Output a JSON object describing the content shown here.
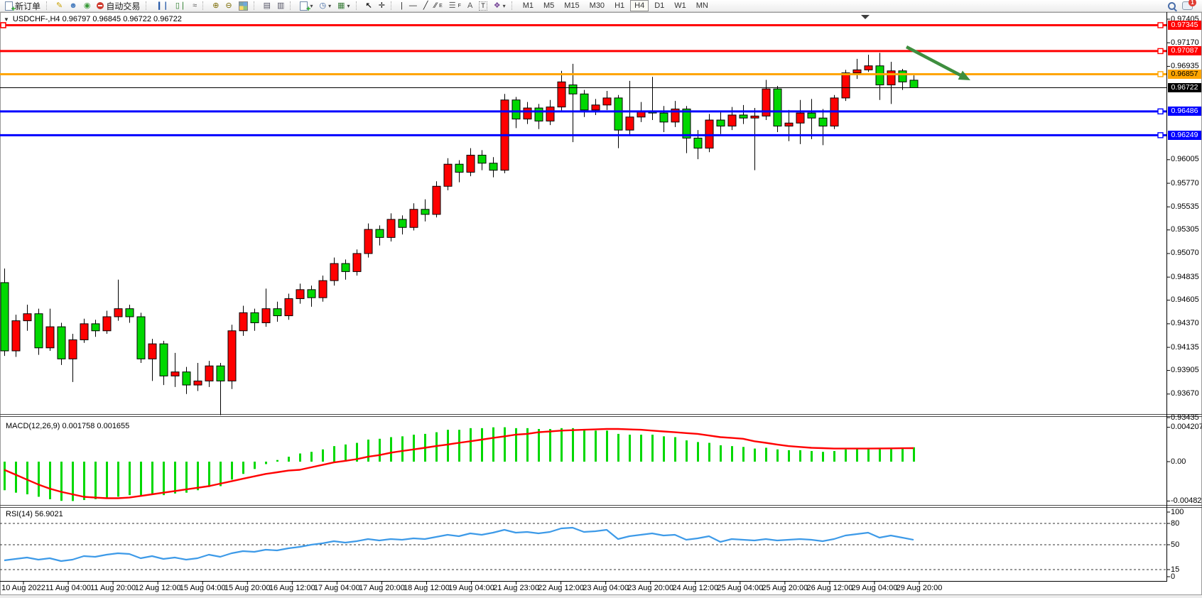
{
  "toolbar": {
    "new_order_label": "新订单",
    "auto_trading_label": "自动交易",
    "chart_tools": {
      "text_tool": "A",
      "label_tool": "T",
      "channel_letter": "E",
      "fibo_letter": "F"
    },
    "timeframes": [
      "M1",
      "M5",
      "M15",
      "M30",
      "H1",
      "H4",
      "D1",
      "W1",
      "MN"
    ],
    "active_timeframe": "H4",
    "notification_badge": "1"
  },
  "chart": {
    "title": "USDCHF-,H4 0.96797 0.96845 0.96722 0.96722",
    "symbol": "USDCHF-",
    "timeframe": "H4",
    "open": "0.96797",
    "high": "0.96845",
    "low": "0.96722",
    "close": "0.96722"
  },
  "panels": {
    "macd": {
      "label": "MACD(12,26,9) 0.001758 0.001655",
      "axis_labels": [
        {
          "value": 0.004207,
          "text": "0.004207"
        },
        {
          "value": 0,
          "text": "0.00"
        },
        {
          "value": -0.004823,
          "text": "-0.004823"
        }
      ]
    },
    "rsi": {
      "label": "RSI(14) 56.9021",
      "axis_labels": [
        {
          "value": 100,
          "text": "100"
        },
        {
          "value": 80,
          "text": "80"
        },
        {
          "value": 50,
          "text": "50"
        },
        {
          "value": 15,
          "text": "15"
        },
        {
          "value": 0,
          "text": "0"
        }
      ],
      "level_lines": [
        80,
        50,
        15
      ]
    }
  },
  "price_axis_ticks": [
    "0.97405",
    "0.97170",
    "0.96935",
    "0.96005",
    "0.95770",
    "0.95535",
    "0.95305",
    "0.95070",
    "0.94835",
    "0.94605",
    "0.94370",
    "0.94135",
    "0.93905",
    "0.93670",
    "0.93435"
  ],
  "time_axis_labels": [
    "10 Aug 2022",
    "11 Aug 04:00",
    "11 Aug 20:00",
    "12 Aug 12:00",
    "15 Aug 04:00",
    "15 Aug 20:00",
    "16 Aug 12:00",
    "17 Aug 04:00",
    "17 Aug 20:00",
    "18 Aug 12:00",
    "19 Aug 04:00",
    "21 Aug 23:00",
    "22 Aug 12:00",
    "23 Aug 04:00",
    "23 Aug 20:00",
    "24 Aug 12:00",
    "25 Aug 04:00",
    "25 Aug 20:00",
    "26 Aug 12:00",
    "29 Aug 04:00",
    "29 Aug 20:00"
  ],
  "hlines": [
    {
      "price": 0.97345,
      "label": "0.97345",
      "color_key": "red"
    },
    {
      "price": 0.97087,
      "label": "0.97087",
      "color_key": "red"
    },
    {
      "price": 0.96857,
      "label": "0.96857",
      "color_key": "orange"
    },
    {
      "price": 0.96722,
      "label": "0.96722",
      "color_key": "black"
    },
    {
      "price": 0.96486,
      "label": "0.96486",
      "color_key": "blue"
    },
    {
      "price": 0.96249,
      "label": "0.96249",
      "color_key": "blue"
    }
  ],
  "annotations": {
    "trend_arrow": {
      "from": [
        1276,
        66
      ],
      "to": [
        1366,
        113
      ]
    }
  },
  "colors": {
    "bull": "#ff0000",
    "bear": "#00d800",
    "wick": "#000000",
    "macd_hist": "#00d800",
    "macd_signal": "#ff0000",
    "rsi_line": "#3d9ae8",
    "red": "#ff0000",
    "orange": "#ffa500",
    "blue": "#0000ff",
    "black": "#000000",
    "arrow": "#3e8e3e"
  },
  "chart_data": {
    "type": "candlestick",
    "symbol": "USDCHF",
    "period": "H4",
    "price_range_visible": [
      0.93435,
      0.97405
    ],
    "up_color_convention": "red = bullish, green = bearish",
    "ohlc_order": [
      "open",
      "high",
      "low",
      "close"
    ],
    "candles": [
      [
        0.9478,
        0.9492,
        0.9405,
        0.941
      ],
      [
        0.941,
        0.9446,
        0.9404,
        0.944
      ],
      [
        0.944,
        0.9456,
        0.943,
        0.9447
      ],
      [
        0.9447,
        0.9452,
        0.9406,
        0.9413
      ],
      [
        0.9413,
        0.9452,
        0.941,
        0.9434
      ],
      [
        0.9434,
        0.9438,
        0.9396,
        0.9402
      ],
      [
        0.9402,
        0.9427,
        0.9379,
        0.9421
      ],
      [
        0.9421,
        0.9442,
        0.9418,
        0.9437
      ],
      [
        0.9437,
        0.9441,
        0.9424,
        0.943
      ],
      [
        0.943,
        0.945,
        0.9427,
        0.9444
      ],
      [
        0.9444,
        0.9481,
        0.944,
        0.9452
      ],
      [
        0.9452,
        0.9456,
        0.9438,
        0.9444
      ],
      [
        0.9444,
        0.9448,
        0.9398,
        0.9402
      ],
      [
        0.9402,
        0.9422,
        0.938,
        0.9417
      ],
      [
        0.9417,
        0.942,
        0.9376,
        0.9385
      ],
      [
        0.9385,
        0.9408,
        0.9374,
        0.9389
      ],
      [
        0.9389,
        0.9394,
        0.9367,
        0.9376
      ],
      [
        0.9376,
        0.9398,
        0.937,
        0.938
      ],
      [
        0.938,
        0.94,
        0.9374,
        0.9395
      ],
      [
        0.9395,
        0.9398,
        0.9346,
        0.938
      ],
      [
        0.938,
        0.9436,
        0.9372,
        0.943
      ],
      [
        0.943,
        0.9455,
        0.9425,
        0.9448
      ],
      [
        0.9448,
        0.9452,
        0.943,
        0.9438
      ],
      [
        0.9438,
        0.9472,
        0.9434,
        0.9452
      ],
      [
        0.9452,
        0.9459,
        0.9439,
        0.9445
      ],
      [
        0.9445,
        0.9467,
        0.9441,
        0.9462
      ],
      [
        0.9462,
        0.9477,
        0.9457,
        0.9471
      ],
      [
        0.9471,
        0.9475,
        0.9454,
        0.9463
      ],
      [
        0.9463,
        0.9485,
        0.9459,
        0.948
      ],
      [
        0.948,
        0.9503,
        0.9475,
        0.9497
      ],
      [
        0.9497,
        0.9501,
        0.9481,
        0.9489
      ],
      [
        0.9489,
        0.9511,
        0.9485,
        0.9507
      ],
      [
        0.9507,
        0.9537,
        0.9503,
        0.9531
      ],
      [
        0.9531,
        0.9535,
        0.9515,
        0.9523
      ],
      [
        0.9523,
        0.9547,
        0.9519,
        0.9541
      ],
      [
        0.9541,
        0.9545,
        0.9526,
        0.9533
      ],
      [
        0.9533,
        0.9557,
        0.953,
        0.9551
      ],
      [
        0.9551,
        0.9561,
        0.9539,
        0.9546
      ],
      [
        0.9546,
        0.9579,
        0.9543,
        0.9574
      ],
      [
        0.9574,
        0.9602,
        0.957,
        0.9596
      ],
      [
        0.9596,
        0.96,
        0.9578,
        0.9588
      ],
      [
        0.9588,
        0.9612,
        0.9584,
        0.9605
      ],
      [
        0.9605,
        0.961,
        0.959,
        0.9597
      ],
      [
        0.9597,
        0.9603,
        0.9583,
        0.959
      ],
      [
        0.959,
        0.9666,
        0.9587,
        0.966
      ],
      [
        0.966,
        0.9663,
        0.9632,
        0.9641
      ],
      [
        0.9641,
        0.9658,
        0.9636,
        0.9652
      ],
      [
        0.9652,
        0.9656,
        0.9631,
        0.9639
      ],
      [
        0.9639,
        0.966,
        0.9635,
        0.9653
      ],
      [
        0.9653,
        0.9689,
        0.9649,
        0.9678
      ],
      [
        0.9675,
        0.9696,
        0.9618,
        0.9666
      ],
      [
        0.9666,
        0.967,
        0.9643,
        0.965
      ],
      [
        0.965,
        0.9661,
        0.9645,
        0.9655
      ],
      [
        0.9655,
        0.9669,
        0.965,
        0.9662
      ],
      [
        0.9662,
        0.9665,
        0.9612,
        0.963
      ],
      [
        0.963,
        0.9679,
        0.9625,
        0.9643
      ],
      [
        0.9643,
        0.9658,
        0.9638,
        0.9649
      ],
      [
        0.9649,
        0.9683,
        0.964,
        0.9647
      ],
      [
        0.9647,
        0.9654,
        0.9628,
        0.9638
      ],
      [
        0.9638,
        0.9659,
        0.9633,
        0.9651
      ],
      [
        0.9651,
        0.9654,
        0.9607,
        0.9622
      ],
      [
        0.9622,
        0.963,
        0.9601,
        0.9612
      ],
      [
        0.9612,
        0.9646,
        0.9608,
        0.964
      ],
      [
        0.964,
        0.9648,
        0.9626,
        0.9634
      ],
      [
        0.9634,
        0.9653,
        0.963,
        0.9645
      ],
      [
        0.9645,
        0.9655,
        0.9636,
        0.9642
      ],
      [
        0.9642,
        0.9652,
        0.959,
        0.9644
      ],
      [
        0.9644,
        0.968,
        0.964,
        0.9671
      ],
      [
        0.9671,
        0.9674,
        0.9628,
        0.9634
      ],
      [
        0.9634,
        0.965,
        0.9619,
        0.9637
      ],
      [
        0.9637,
        0.966,
        0.9616,
        0.9647
      ],
      [
        0.9647,
        0.9661,
        0.9621,
        0.9642
      ],
      [
        0.9642,
        0.9651,
        0.9615,
        0.9634
      ],
      [
        0.9634,
        0.9665,
        0.9631,
        0.9662
      ],
      [
        0.9662,
        0.969,
        0.9659,
        0.9687
      ],
      [
        0.9687,
        0.9701,
        0.9681,
        0.969
      ],
      [
        0.969,
        0.9705,
        0.9688,
        0.9694
      ],
      [
        0.9694,
        0.9707,
        0.966,
        0.9675
      ],
      [
        0.9675,
        0.9698,
        0.9656,
        0.9689
      ],
      [
        0.9689,
        0.9691,
        0.967,
        0.9678
      ],
      [
        0.96797,
        0.96845,
        0.96722,
        0.96722
      ]
    ],
    "macd": {
      "params": "12,26,9",
      "current_macd": 0.001758,
      "current_signal": 0.001655,
      "range": [
        -0.004823,
        0.004207
      ],
      "histogram": [
        -0.0035,
        -0.0038,
        -0.004,
        -0.0043,
        -0.0046,
        -0.0048,
        -0.00482,
        -0.0047,
        -0.0046,
        -0.0044,
        -0.0043,
        -0.0041,
        -0.0042,
        -0.004,
        -0.0041,
        -0.0039,
        -0.0038,
        -0.0035,
        -0.0031,
        -0.003,
        -0.0022,
        -0.0015,
        -0.0009,
        -0.0003,
        0.0002,
        0.0006,
        0.001,
        0.0012,
        0.0015,
        0.0019,
        0.0021,
        0.0023,
        0.0027,
        0.0028,
        0.003,
        0.0031,
        0.0033,
        0.0034,
        0.0036,
        0.0039,
        0.0039,
        0.0041,
        0.0041,
        0.0042,
        0.00421,
        0.0041,
        0.0041,
        0.004,
        0.004,
        0.0041,
        0.0041,
        0.0039,
        0.0038,
        0.0038,
        0.0034,
        0.0033,
        0.0033,
        0.0033,
        0.0031,
        0.003,
        0.0026,
        0.0024,
        0.0023,
        0.002,
        0.0019,
        0.0018,
        0.0016,
        0.0017,
        0.0015,
        0.0014,
        0.0014,
        0.0013,
        0.0012,
        0.0013,
        0.0015,
        0.0016,
        0.0017,
        0.0016,
        0.0017,
        0.0017,
        0.001758
      ],
      "signal": [
        -0.001,
        -0.0016,
        -0.0022,
        -0.0028,
        -0.0033,
        -0.0037,
        -0.004,
        -0.0043,
        -0.0044,
        -0.00448,
        -0.00448,
        -0.0044,
        -0.0042,
        -0.004,
        -0.0038,
        -0.0036,
        -0.0034,
        -0.0032,
        -0.003,
        -0.0027,
        -0.0024,
        -0.0021,
        -0.0018,
        -0.0015,
        -0.0013,
        -0.0011,
        -0.001,
        -0.0007,
        -0.0004,
        -0.0001,
        0.0001,
        0.0003,
        0.0006,
        0.0008,
        0.0011,
        0.0013,
        0.0015,
        0.0017,
        0.0019,
        0.0021,
        0.0023,
        0.0025,
        0.0027,
        0.0029,
        0.0031,
        0.0033,
        0.0034,
        0.0036,
        0.0037,
        0.0038,
        0.00385,
        0.0039,
        0.00395,
        0.004,
        0.004,
        0.00395,
        0.0039,
        0.0038,
        0.0037,
        0.0036,
        0.0035,
        0.0034,
        0.0032,
        0.003,
        0.0029,
        0.0028,
        0.0025,
        0.0023,
        0.0021,
        0.0019,
        0.0018,
        0.0017,
        0.00165,
        0.0016,
        0.0016,
        0.0016,
        0.0016,
        0.00162,
        0.00163,
        0.00164,
        0.001655
      ]
    },
    "rsi": {
      "period": 14,
      "current": 56.9021,
      "range": [
        0,
        100
      ],
      "values": [
        28,
        30,
        32,
        29,
        31,
        27,
        29,
        34,
        33,
        36,
        38,
        37,
        31,
        34,
        30,
        32,
        29,
        31,
        36,
        33,
        38,
        41,
        40,
        43,
        42,
        45,
        47,
        50,
        52,
        55,
        53,
        55,
        58,
        56,
        58,
        57,
        59,
        58,
        61,
        64,
        62,
        66,
        64,
        67,
        71,
        67,
        68,
        66,
        68,
        73,
        74,
        68,
        69,
        71,
        58,
        62,
        64,
        66,
        63,
        64,
        57,
        59,
        62,
        54,
        58,
        57,
        56,
        58,
        56,
        57,
        58,
        57,
        55,
        58,
        63,
        65,
        67,
        60,
        63,
        60,
        56.9
      ]
    }
  }
}
